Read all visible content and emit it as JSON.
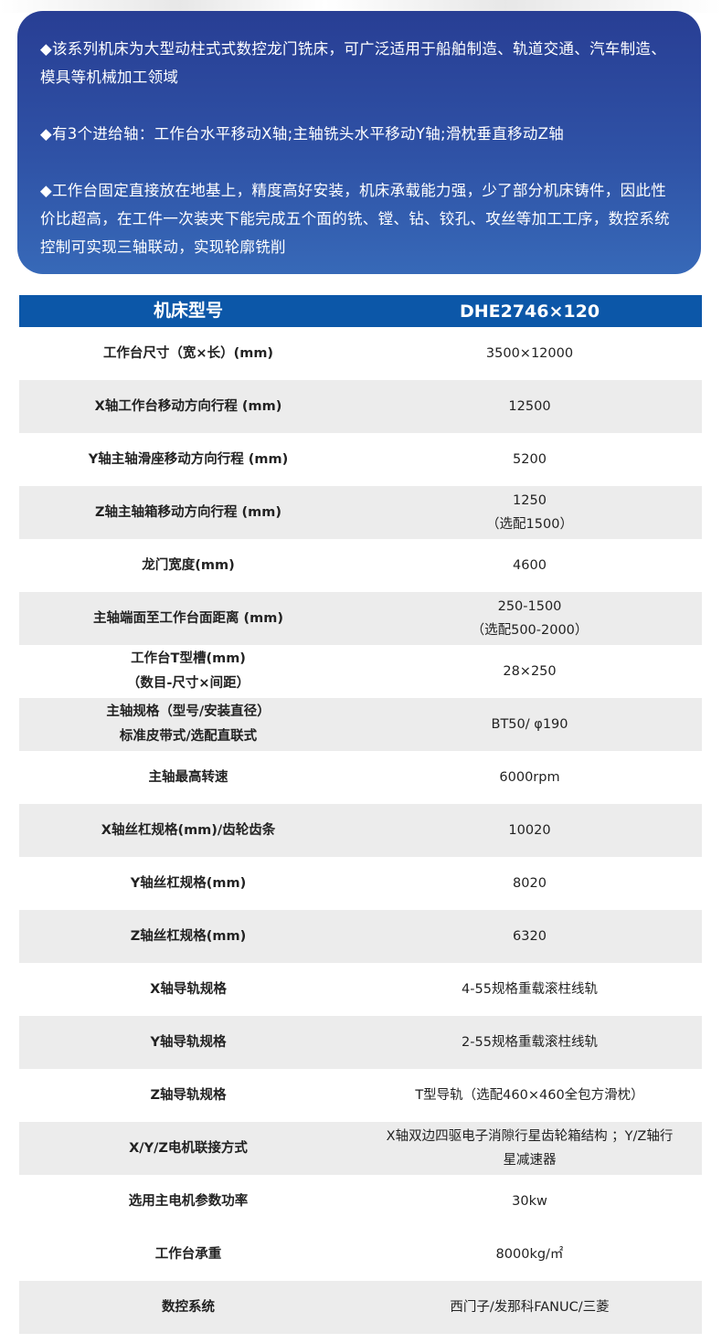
{
  "intro": {
    "paragraphs": [
      "◆该系列机床为大型动柱式式数控龙门铣床，可广泛适用于船舶制造、轨道交通、汽车制造、模具等机械加工领域",
      "◆有3个进给轴：工作台水平移动X轴;主轴铣头水平移动Y轴;滑枕垂直移动Z轴",
      "◆工作台固定直接放在地基上，精度高好安装，机床承载能力强，少了部分机床铸件，因此性价比超高，在工件一次装夹下能完成五个面的铣、镗、钻、铰孔、攻丝等加工工序，数控系统控制可实现三轴联动，实现轮廓铣削"
    ]
  },
  "colors": {
    "header": "#0c57a8",
    "card_top": "#283e94",
    "card_bottom": "#3769b8",
    "row_alt": "#ececec"
  },
  "table": {
    "header": [
      "机床型号",
      "DHE2746×120"
    ],
    "rows": [
      {
        "param": [
          "工作台尺寸（宽×长）(mm)"
        ],
        "value": [
          "3500×12000"
        ],
        "gray": false
      },
      {
        "param": [
          "X轴工作台移动方向行程 (mm)"
        ],
        "value": [
          "12500"
        ],
        "gray": true
      },
      {
        "param": [
          "Y轴主轴滑座移动方向行程 (mm)"
        ],
        "value": [
          "5200"
        ],
        "gray": false
      },
      {
        "param": [
          "Z轴主轴箱移动方向行程 (mm)"
        ],
        "value": [
          "1250",
          "（选配1500）"
        ],
        "gray": true
      },
      {
        "param": [
          "龙门宽度(mm)"
        ],
        "value": [
          "4600"
        ],
        "gray": false
      },
      {
        "param": [
          "主轴端面至工作台面距离 (mm)"
        ],
        "value": [
          "250-1500",
          "（选配500-2000）"
        ],
        "gray": true
      },
      {
        "param": [
          "工作台T型槽(mm)",
          "（数目-尺寸×间距）"
        ],
        "value": [
          "28×250"
        ],
        "gray": false
      },
      {
        "param": [
          "主轴规格（型号/安装直径）",
          "标准皮带式/选配直联式"
        ],
        "value": [
          "BT50/ φ190"
        ],
        "gray": true
      },
      {
        "param": [
          "主轴最高转速"
        ],
        "value": [
          "6000rpm"
        ],
        "gray": false
      },
      {
        "param": [
          "X轴丝杠规格(mm)/齿轮齿条"
        ],
        "value": [
          "10020"
        ],
        "gray": true
      },
      {
        "param": [
          "Y轴丝杠规格(mm)"
        ],
        "value": [
          "8020"
        ],
        "gray": false
      },
      {
        "param": [
          "Z轴丝杠规格(mm)"
        ],
        "value": [
          "6320"
        ],
        "gray": true
      },
      {
        "param": [
          "X轴导轨规格"
        ],
        "value": [
          "4-55规格重载滚柱线轨"
        ],
        "gray": false
      },
      {
        "param": [
          "Y轴导轨规格"
        ],
        "value": [
          "2-55规格重载滚柱线轨"
        ],
        "gray": true
      },
      {
        "param": [
          "Z轴导轨规格"
        ],
        "value": [
          "T型导轨（选配460×460全包方滑枕）"
        ],
        "gray": false
      },
      {
        "param": [
          "X/Y/Z电机联接方式"
        ],
        "value": [
          "X轴双边四驱电子消隙行星齿轮箱结构 ；Y/Z轴行",
          "星减速器"
        ],
        "gray": true
      },
      {
        "param": [
          "选用主电机参数功率"
        ],
        "value": [
          "30kw"
        ],
        "gray": false
      },
      {
        "param": [
          "工作台承重"
        ],
        "value": [
          "8000kg/㎡"
        ],
        "gray": false
      },
      {
        "param": [
          "数控系统"
        ],
        "value": [
          "西门子/发那科FANUC/三菱"
        ],
        "gray": true
      }
    ]
  }
}
